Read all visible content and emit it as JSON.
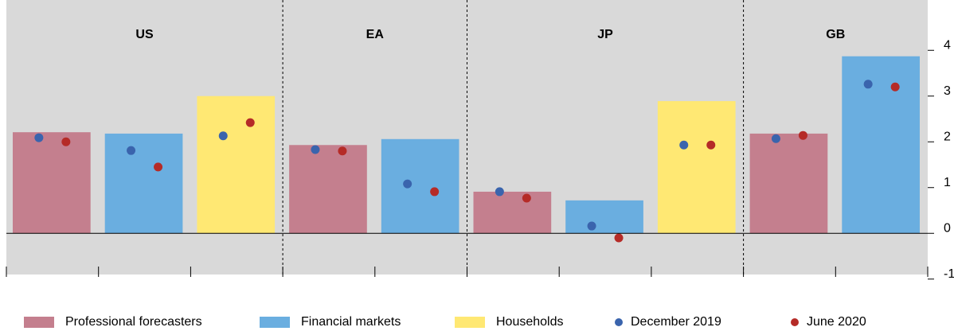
{
  "chart_data": {
    "type": "bar",
    "series": [
      {
        "name": "Professional forecasters",
        "color": "#c47f8e",
        "kind": "bar"
      },
      {
        "name": "Financial markets",
        "color": "#6aaee0",
        "kind": "bar"
      },
      {
        "name": "Households",
        "color": "#ffe873",
        "kind": "bar"
      },
      {
        "name": "December 2019",
        "color": "#3a64ad",
        "kind": "dot"
      },
      {
        "name": "June 2020",
        "color": "#b52b27",
        "kind": "dot"
      }
    ],
    "groups": [
      {
        "name": "US",
        "bars": [
          2.21,
          2.18,
          3.0
        ],
        "dots": [
          [
            2.09,
            1.81,
            2.13
          ],
          [
            2.0,
            1.45,
            2.42
          ]
        ]
      },
      {
        "name": "EA",
        "bars": [
          1.93,
          2.06
        ],
        "dots": [
          [
            1.83,
            1.08
          ],
          [
            1.8,
            0.91
          ]
        ]
      },
      {
        "name": "JP",
        "bars": [
          0.91,
          0.72,
          2.89
        ],
        "dots": [
          [
            0.91,
            0.16,
            1.93
          ],
          [
            0.77,
            -0.1,
            1.93
          ]
        ]
      },
      {
        "name": "GB",
        "bars": [
          2.18,
          3.87
        ],
        "dots": [
          [
            2.07,
            3.26
          ],
          [
            2.14,
            3.2
          ]
        ]
      }
    ],
    "ylim": [
      -0.9,
      5.1
    ],
    "yticks": [
      -1,
      0,
      1,
      2,
      3,
      4
    ]
  }
}
